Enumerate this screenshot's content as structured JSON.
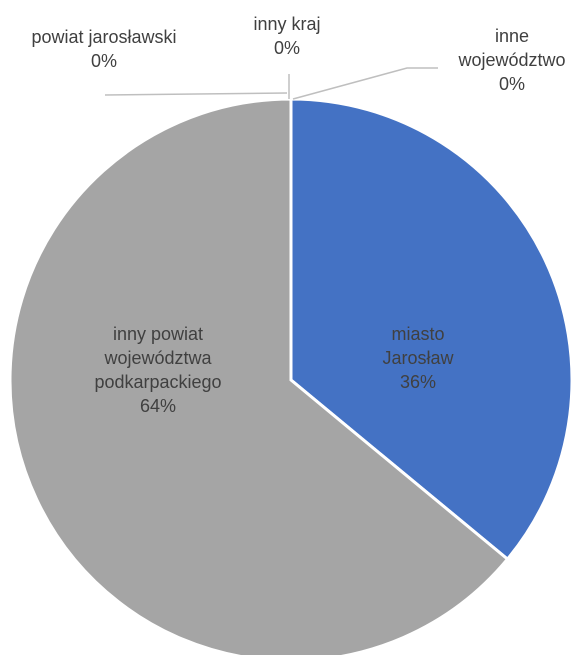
{
  "chart_data": {
    "type": "pie",
    "title": "",
    "categories": [
      "miasto Jarosław",
      "inny powiat województwa podkarpackiego",
      "powiat jarosławski",
      "inny kraj",
      "inne województwo"
    ],
    "values": [
      36,
      64,
      0,
      0,
      0
    ],
    "value_labels": [
      "36%",
      "64%",
      "0%",
      "0%",
      "0%"
    ],
    "label_lines": {
      "miasto_jaroslaw": [
        "miasto",
        "Jarosław",
        "36%"
      ],
      "inny_powiat": [
        "inny powiat",
        "województwa",
        "podkarpackiego",
        "64%"
      ],
      "powiat_jaroslawski": [
        "powiat jarosławski",
        "0%"
      ],
      "inny_kraj": [
        "inny kraj",
        "0%"
      ],
      "inne_wojewodztwo": [
        "inne",
        "województwo",
        "0%"
      ]
    },
    "colors": {
      "miasto_jaroslaw": "#4472C4",
      "inny_powiat": "#A5A5A5",
      "leader_line": "#BFBFBF",
      "slice_border": "#FFFFFF",
      "text": "#404040"
    },
    "legend": "none",
    "grid": false
  }
}
